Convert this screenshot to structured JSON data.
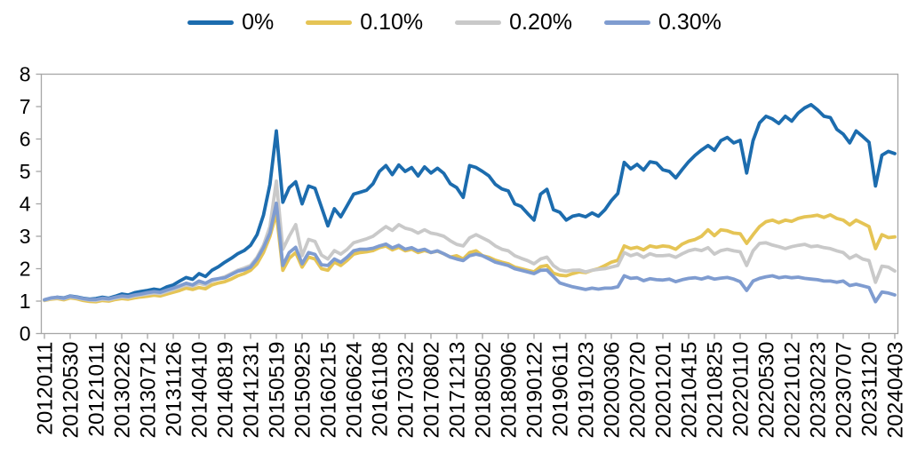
{
  "chart_data": {
    "type": "line",
    "title": "",
    "xlabel": "",
    "ylabel": "",
    "ylim": [
      0,
      8
    ],
    "y_ticks": [
      0,
      1,
      2,
      3,
      4,
      5,
      6,
      7,
      8
    ],
    "grid": false,
    "legend_position": "top-center",
    "axis_color": "#a6a6a6",
    "x_tick_labels": [
      "20120111",
      "20120530",
      "20121011",
      "20130226",
      "20130712",
      "20131126",
      "20140410",
      "20140819",
      "20141231",
      "20150519",
      "20150925",
      "20160215",
      "20160624",
      "20161108",
      "20170322",
      "20170802",
      "20171213",
      "20180502",
      "20180906",
      "20190122",
      "20190611",
      "20191023",
      "20200306",
      "20200720",
      "20201201",
      "20210415",
      "20210825",
      "20220110",
      "20220530",
      "20221012",
      "20230223",
      "20230707",
      "20231120",
      "20240403"
    ],
    "series": [
      {
        "name": "0%",
        "color": "#1c6cae",
        "values": [
          1.03,
          1.08,
          1.12,
          1.1,
          1.16,
          1.13,
          1.09,
          1.06,
          1.08,
          1.12,
          1.09,
          1.15,
          1.22,
          1.19,
          1.26,
          1.3,
          1.33,
          1.37,
          1.34,
          1.44,
          1.5,
          1.62,
          1.73,
          1.67,
          1.85,
          1.76,
          1.95,
          2.06,
          2.2,
          2.32,
          2.46,
          2.56,
          2.72,
          3.05,
          3.65,
          4.6,
          6.25,
          4.05,
          4.5,
          4.68,
          4.0,
          4.55,
          4.48,
          3.9,
          3.32,
          3.85,
          3.6,
          3.95,
          4.3,
          4.36,
          4.42,
          4.62,
          5.0,
          5.18,
          4.9,
          5.2,
          5.0,
          5.12,
          4.86,
          5.14,
          4.95,
          5.1,
          4.94,
          4.62,
          4.5,
          4.2,
          5.18,
          5.12,
          5.0,
          4.86,
          4.6,
          4.46,
          4.4,
          4.0,
          3.92,
          3.7,
          3.5,
          4.3,
          4.45,
          3.82,
          3.74,
          3.5,
          3.62,
          3.66,
          3.6,
          3.72,
          3.62,
          3.82,
          4.1,
          4.32,
          5.28,
          5.08,
          5.22,
          5.04,
          5.3,
          5.26,
          5.05,
          5.0,
          4.8,
          5.06,
          5.3,
          5.5,
          5.66,
          5.8,
          5.65,
          5.95,
          6.05,
          5.88,
          5.96,
          4.95,
          5.95,
          6.5,
          6.7,
          6.62,
          6.48,
          6.7,
          6.55,
          6.8,
          6.96,
          7.06,
          6.9,
          6.7,
          6.66,
          6.3,
          6.15,
          5.88,
          6.25,
          6.08,
          5.9,
          4.55,
          5.5,
          5.62,
          5.55
        ]
      },
      {
        "name": "0.10%",
        "color": "#e5c455",
        "values": [
          1.02,
          1.06,
          1.08,
          1.04,
          1.1,
          1.07,
          1.02,
          0.99,
          0.98,
          1.02,
          1.0,
          1.05,
          1.08,
          1.06,
          1.1,
          1.13,
          1.15,
          1.18,
          1.16,
          1.22,
          1.27,
          1.33,
          1.4,
          1.36,
          1.42,
          1.38,
          1.5,
          1.56,
          1.6,
          1.68,
          1.78,
          1.85,
          1.95,
          2.15,
          2.5,
          3.0,
          3.72,
          1.95,
          2.32,
          2.5,
          2.05,
          2.36,
          2.3,
          2.0,
          1.95,
          2.2,
          2.1,
          2.26,
          2.45,
          2.5,
          2.52,
          2.56,
          2.65,
          2.7,
          2.58,
          2.66,
          2.55,
          2.6,
          2.5,
          2.56,
          2.5,
          2.54,
          2.46,
          2.36,
          2.4,
          2.3,
          2.5,
          2.55,
          2.4,
          2.35,
          2.26,
          2.2,
          2.15,
          2.05,
          2.0,
          1.95,
          1.9,
          2.06,
          2.1,
          1.86,
          1.8,
          1.78,
          1.85,
          1.9,
          1.88,
          1.95,
          2.0,
          2.1,
          2.2,
          2.26,
          2.7,
          2.62,
          2.66,
          2.58,
          2.7,
          2.66,
          2.7,
          2.68,
          2.6,
          2.76,
          2.85,
          2.9,
          3.0,
          3.2,
          3.02,
          3.2,
          3.17,
          3.1,
          3.08,
          2.78,
          3.05,
          3.3,
          3.45,
          3.5,
          3.42,
          3.5,
          3.46,
          3.55,
          3.6,
          3.62,
          3.65,
          3.58,
          3.66,
          3.55,
          3.5,
          3.35,
          3.5,
          3.4,
          3.3,
          2.62,
          3.05,
          2.96,
          2.98
        ]
      },
      {
        "name": "0.20%",
        "color": "#c9c9c9",
        "values": [
          1.03,
          1.08,
          1.1,
          1.07,
          1.13,
          1.1,
          1.06,
          1.03,
          1.02,
          1.06,
          1.04,
          1.09,
          1.13,
          1.11,
          1.16,
          1.19,
          1.22,
          1.25,
          1.23,
          1.3,
          1.36,
          1.43,
          1.5,
          1.46,
          1.55,
          1.5,
          1.62,
          1.69,
          1.75,
          1.85,
          1.95,
          2.02,
          2.1,
          2.35,
          2.72,
          3.3,
          4.7,
          2.6,
          3.0,
          3.36,
          2.4,
          2.9,
          2.84,
          2.42,
          2.3,
          2.56,
          2.45,
          2.6,
          2.8,
          2.86,
          2.92,
          3.0,
          3.15,
          3.3,
          3.18,
          3.36,
          3.25,
          3.2,
          3.1,
          3.2,
          3.1,
          3.06,
          3.0,
          2.86,
          2.75,
          2.7,
          2.95,
          3.05,
          2.95,
          2.85,
          2.7,
          2.6,
          2.55,
          2.4,
          2.32,
          2.25,
          2.15,
          2.3,
          2.36,
          2.1,
          1.96,
          1.92,
          1.95,
          1.96,
          1.9,
          1.95,
          1.98,
          2.0,
          2.05,
          2.1,
          2.5,
          2.4,
          2.46,
          2.35,
          2.46,
          2.4,
          2.4,
          2.42,
          2.35,
          2.46,
          2.55,
          2.6,
          2.56,
          2.65,
          2.45,
          2.56,
          2.6,
          2.55,
          2.52,
          2.1,
          2.55,
          2.78,
          2.8,
          2.73,
          2.68,
          2.62,
          2.68,
          2.72,
          2.75,
          2.68,
          2.7,
          2.65,
          2.62,
          2.55,
          2.5,
          2.32,
          2.42,
          2.3,
          2.25,
          1.58,
          2.08,
          2.05,
          1.93
        ]
      },
      {
        "name": "0.30%",
        "color": "#7f9cd0",
        "values": [
          1.04,
          1.1,
          1.12,
          1.09,
          1.15,
          1.12,
          1.08,
          1.05,
          1.05,
          1.09,
          1.07,
          1.12,
          1.16,
          1.14,
          1.19,
          1.22,
          1.26,
          1.29,
          1.27,
          1.34,
          1.4,
          1.47,
          1.55,
          1.5,
          1.62,
          1.55,
          1.66,
          1.69,
          1.72,
          1.82,
          1.92,
          1.97,
          2.05,
          2.3,
          2.65,
          3.1,
          4.02,
          2.1,
          2.5,
          2.66,
          2.15,
          2.5,
          2.44,
          2.12,
          2.1,
          2.3,
          2.2,
          2.36,
          2.55,
          2.6,
          2.6,
          2.63,
          2.7,
          2.76,
          2.64,
          2.72,
          2.6,
          2.65,
          2.55,
          2.6,
          2.5,
          2.55,
          2.46,
          2.36,
          2.3,
          2.25,
          2.4,
          2.45,
          2.4,
          2.3,
          2.2,
          2.15,
          2.1,
          2.0,
          1.95,
          1.9,
          1.85,
          1.95,
          1.96,
          1.76,
          1.56,
          1.5,
          1.44,
          1.4,
          1.36,
          1.4,
          1.37,
          1.4,
          1.4,
          1.44,
          1.78,
          1.7,
          1.72,
          1.63,
          1.69,
          1.66,
          1.65,
          1.68,
          1.6,
          1.66,
          1.7,
          1.72,
          1.68,
          1.74,
          1.68,
          1.71,
          1.73,
          1.68,
          1.6,
          1.33,
          1.62,
          1.7,
          1.75,
          1.78,
          1.72,
          1.75,
          1.72,
          1.74,
          1.7,
          1.68,
          1.66,
          1.62,
          1.62,
          1.58,
          1.62,
          1.48,
          1.52,
          1.47,
          1.42,
          0.98,
          1.28,
          1.25,
          1.19
        ]
      }
    ]
  }
}
